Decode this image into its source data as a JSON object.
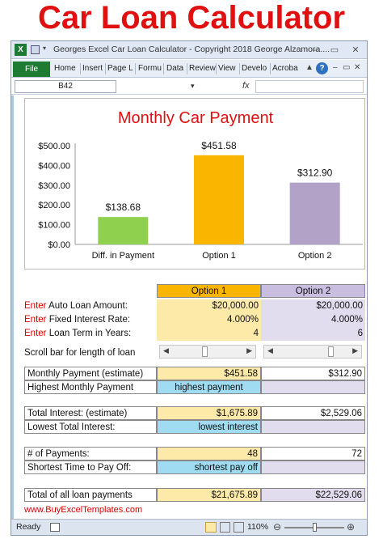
{
  "banner": "Car Loan Calculator",
  "window": {
    "title": "Georges Excel Car Loan Calculator - Copyright 2018 George Alzamora....",
    "name_box": "B42",
    "fx": "fx"
  },
  "ribbon": {
    "file": "File",
    "tabs": [
      "Home",
      "Insert",
      "Page L",
      "Formu",
      "Data",
      "Review",
      "View",
      "Develo",
      "Acroba"
    ]
  },
  "chart_data": {
    "type": "bar",
    "title": "Monthly Car Payment",
    "categories": [
      "Diff. in Payment",
      "Option 1",
      "Option 2"
    ],
    "values": [
      138.68,
      451.58,
      312.9
    ],
    "value_labels": [
      "$138.68",
      "$451.58",
      "$312.90"
    ],
    "colors": [
      "#8fd14f",
      "#f9b500",
      "#b3a2c8"
    ],
    "yticks": [
      "$500.00",
      "$400.00",
      "$300.00",
      "$200.00",
      "$100.00",
      "$0.00"
    ],
    "ylim": [
      0,
      500
    ],
    "grid": false
  },
  "table": {
    "opt1_header": "Option 1",
    "opt2_header": "Option 2",
    "enter": "Enter",
    "amount_label": " Auto Loan Amount:",
    "amount1": "$20,000.00",
    "amount2": "$20,000.00",
    "rate_label": " Fixed Interest Rate:",
    "rate1": "4.000%",
    "rate2": "4.000%",
    "term_label": " Loan Term in Years:",
    "term1": "4",
    "term2": "6",
    "scroll_label": "Scroll bar for length of loan",
    "payment_label": "Monthly Payment (estimate)",
    "payment1": "$451.58",
    "payment2": "$312.90",
    "highest_label": "Highest Monthly Payment",
    "highest_val": "highest payment",
    "interest_label": "Total Interest: (estimate)",
    "interest1": "$1,675.89",
    "interest2": "$2,529.06",
    "lowest_label": "Lowest Total Interest:",
    "lowest_val": "lowest interest",
    "num_label": "# of Payments:",
    "num1": "48",
    "num2": "72",
    "shortest_label": "Shortest Time to Pay Off:",
    "shortest_val": "shortest pay off",
    "total_label": "Total of all loan payments",
    "total1": "$21,675.89",
    "total2": "$22,529.06",
    "website": "www.BuyExcelTemplates.com"
  },
  "status": {
    "ready": "Ready",
    "zoom": "110%"
  }
}
